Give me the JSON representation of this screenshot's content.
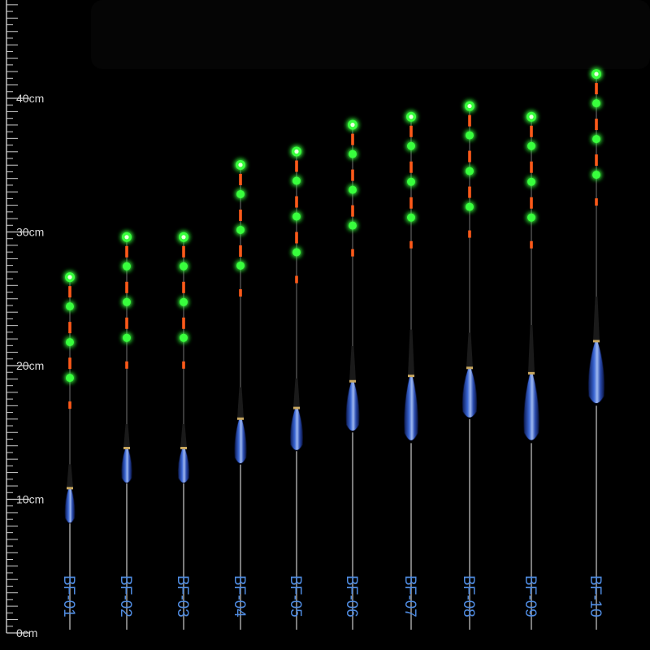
{
  "ruler": {
    "labels": [
      {
        "text": "0cm",
        "cm": 0
      },
      {
        "text": "10cm",
        "cm": 10
      },
      {
        "text": "20cm",
        "cm": 20
      },
      {
        "text": "30cm",
        "cm": 30
      },
      {
        "text": "40cm",
        "cm": 40
      }
    ]
  },
  "floats": [
    {
      "model": "BF-01",
      "length_cm": 26.8,
      "body_bottom_cm": 8.2,
      "body_top_cm": 10.8
    },
    {
      "model": "BF-02",
      "length_cm": 29.8,
      "body_bottom_cm": 11.2,
      "body_top_cm": 13.8
    },
    {
      "model": "BF-03",
      "length_cm": 29.8,
      "body_bottom_cm": 11.2,
      "body_top_cm": 13.8
    },
    {
      "model": "BF-04",
      "length_cm": 35.2,
      "body_bottom_cm": 12.6,
      "body_top_cm": 16.0
    },
    {
      "model": "BF-05",
      "length_cm": 36.2,
      "body_bottom_cm": 13.6,
      "body_top_cm": 16.8
    },
    {
      "model": "BF-06",
      "length_cm": 38.2,
      "body_bottom_cm": 15.0,
      "body_top_cm": 18.8
    },
    {
      "model": "BF-07",
      "length_cm": 38.8,
      "body_bottom_cm": 14.2,
      "body_top_cm": 19.2
    },
    {
      "model": "BF-08",
      "length_cm": 39.6,
      "body_bottom_cm": 16.0,
      "body_top_cm": 19.8
    },
    {
      "model": "BF-09",
      "length_cm": 38.8,
      "body_bottom_cm": 14.2,
      "body_top_cm": 19.4
    },
    {
      "model": "BF-10",
      "length_cm": 42.0,
      "body_bottom_cm": 17.0,
      "body_top_cm": 21.8
    }
  ],
  "colors": {
    "background": "#000000",
    "ruler": "#cfcfcf",
    "label": "#4f8be0",
    "glow_green": "#39ff3c",
    "band_orange": "#ff5a1a",
    "body_blue": "#2547a8"
  }
}
